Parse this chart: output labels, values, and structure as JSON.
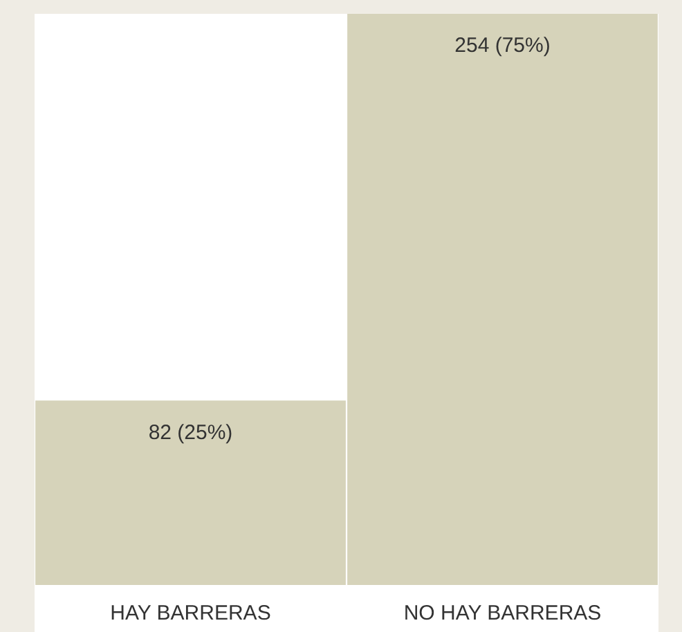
{
  "chart_data": {
    "type": "bar",
    "categories": [
      "HAY BARRERAS",
      "NO HAY BARRERAS"
    ],
    "values": [
      82,
      254
    ],
    "value_labels": [
      "82 (25%)",
      "254 (75%)"
    ],
    "color": "#d6d3ba",
    "grid": false,
    "legend": false
  }
}
